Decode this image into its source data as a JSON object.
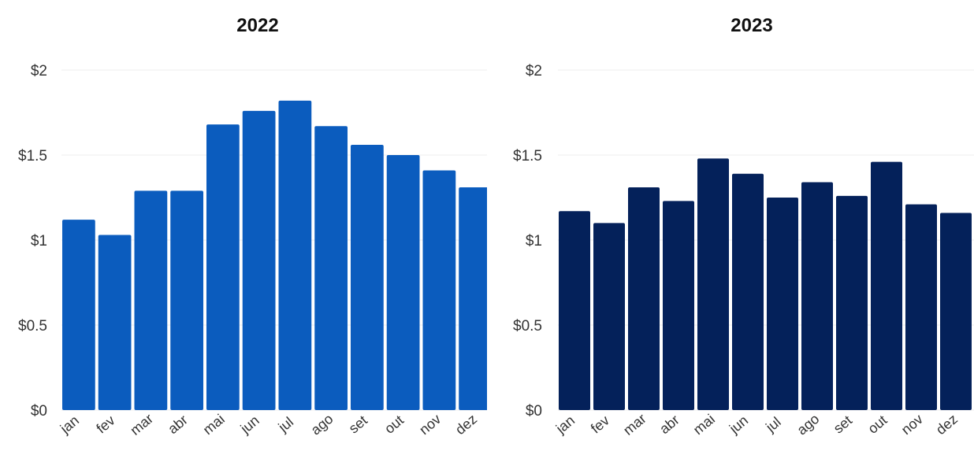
{
  "chart_data": [
    {
      "type": "bar",
      "title": "2022",
      "categories": [
        "jan",
        "fev",
        "mar",
        "abr",
        "mai",
        "jun",
        "jul",
        "ago",
        "set",
        "out",
        "nov",
        "dez"
      ],
      "values": [
        1.12,
        1.03,
        1.29,
        1.29,
        1.68,
        1.76,
        1.82,
        1.67,
        1.56,
        1.5,
        1.41,
        1.31
      ],
      "yticks": [
        "$0",
        "$0.5",
        "$1",
        "$1.5",
        "$2"
      ],
      "ylim": [
        0,
        2
      ],
      "grid": true,
      "bar_color": "#0b5cbe"
    },
    {
      "type": "bar",
      "title": "2023",
      "categories": [
        "jan",
        "fev",
        "mar",
        "abr",
        "mai",
        "jun",
        "jul",
        "ago",
        "set",
        "out",
        "nov",
        "dez"
      ],
      "values": [
        1.17,
        1.1,
        1.31,
        1.23,
        1.48,
        1.39,
        1.25,
        1.34,
        1.26,
        1.46,
        1.21,
        1.16
      ],
      "yticks": [
        "$0",
        "$0.5",
        "$1",
        "$1.5",
        "$2"
      ],
      "ylim": [
        0,
        2
      ],
      "grid": true,
      "bar_color": "#04215a"
    }
  ]
}
